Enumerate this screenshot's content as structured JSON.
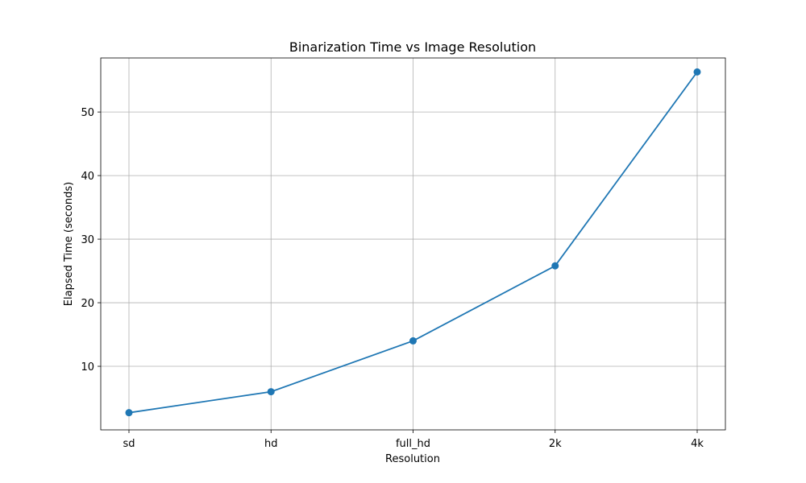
{
  "chart_data": {
    "type": "line",
    "title": "Binarization Time vs Image Resolution",
    "xlabel": "Resolution",
    "ylabel": "Elapsed Time (seconds)",
    "categories": [
      "sd",
      "hd",
      "full_hd",
      "2k",
      "4k"
    ],
    "series": [
      {
        "values": [
          2.7,
          6.0,
          14.0,
          25.8,
          56.3
        ],
        "color": "#1f77b4",
        "marker": "circle"
      }
    ],
    "ylim": [
      0,
      58.5
    ],
    "yticks": [
      10,
      20,
      30,
      40,
      50
    ],
    "grid": true,
    "legend": false
  }
}
